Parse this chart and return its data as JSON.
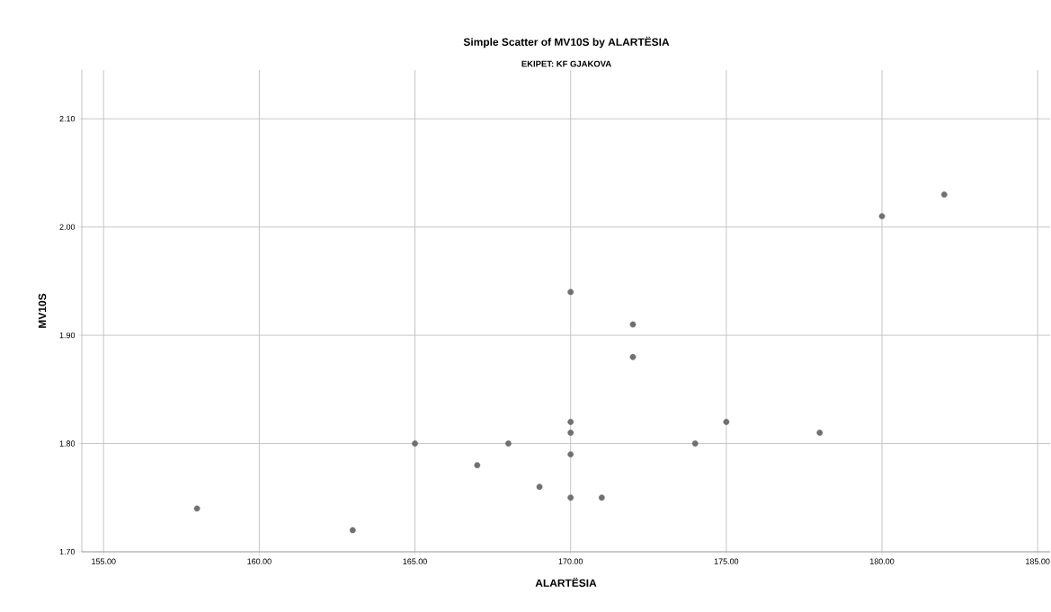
{
  "chart_data": {
    "type": "scatter",
    "title": "Simple Scatter of MV10S by ALARTËSIA",
    "subtitle": "EKIPET: KF GJAKOVA",
    "xlabel": "ALARTËSIA",
    "ylabel": "MV10S",
    "x": [
      158,
      163,
      165,
      167,
      168,
      169,
      170,
      170,
      170,
      170,
      170,
      171,
      172,
      172,
      174,
      175,
      178,
      180,
      182
    ],
    "values": [
      1.74,
      1.72,
      1.8,
      1.78,
      1.8,
      1.76,
      1.75,
      1.79,
      1.81,
      1.82,
      1.94,
      1.75,
      1.91,
      1.88,
      1.8,
      1.82,
      1.81,
      2.01,
      2.03
    ],
    "color": "#707070",
    "marker": "circle",
    "grid": true,
    "xlim": [
      154.3,
      185.4
    ],
    "ylim": [
      1.7,
      2.145
    ],
    "xticks": [
      {
        "value": 155,
        "label": "155.00"
      },
      {
        "value": 160,
        "label": "160.00"
      },
      {
        "value": 165,
        "label": "165.00"
      },
      {
        "value": 170,
        "label": "170.00"
      },
      {
        "value": 175,
        "label": "175.00"
      },
      {
        "value": 180,
        "label": "180.00"
      },
      {
        "value": 185,
        "label": "185.00"
      }
    ],
    "yticks": [
      {
        "value": 1.7,
        "label": "1.70"
      },
      {
        "value": 1.8,
        "label": "1.80"
      },
      {
        "value": 1.9,
        "label": "1.90"
      },
      {
        "value": 2.0,
        "label": "2.00"
      },
      {
        "value": 2.1,
        "label": "2.10"
      }
    ]
  }
}
